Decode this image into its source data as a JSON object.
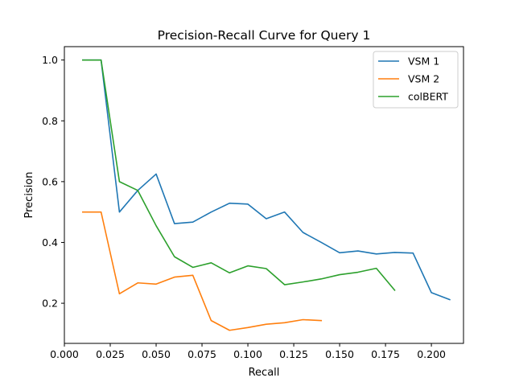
{
  "chart_data": {
    "type": "line",
    "title": "Precision-Recall Curve for Query 1",
    "xlabel": "Recall",
    "ylabel": "Precision",
    "xlim": [
      0.0,
      0.2175
    ],
    "ylim": [
      0.068,
      1.044
    ],
    "xticks": [
      {
        "value": 0.0,
        "label": "0.000"
      },
      {
        "value": 0.025,
        "label": "0.025"
      },
      {
        "value": 0.05,
        "label": "0.050"
      },
      {
        "value": 0.075,
        "label": "0.075"
      },
      {
        "value": 0.1,
        "label": "0.100"
      },
      {
        "value": 0.125,
        "label": "0.125"
      },
      {
        "value": 0.15,
        "label": "0.150"
      },
      {
        "value": 0.175,
        "label": "0.175"
      },
      {
        "value": 0.2,
        "label": "0.200"
      }
    ],
    "yticks": [
      {
        "value": 0.2,
        "label": "0.2"
      },
      {
        "value": 0.4,
        "label": "0.4"
      },
      {
        "value": 0.6,
        "label": "0.6"
      },
      {
        "value": 0.8,
        "label": "0.8"
      },
      {
        "value": 1.0,
        "label": "1.0"
      }
    ],
    "grid": false,
    "legend_position": "top-right",
    "series": [
      {
        "name": "VSM 1",
        "color": "#1f77b4",
        "x": [
          0.01,
          0.02,
          0.03,
          0.04,
          0.05,
          0.06,
          0.07,
          0.08,
          0.09,
          0.1,
          0.11,
          0.12,
          0.13,
          0.14,
          0.15,
          0.16,
          0.17,
          0.18,
          0.19,
          0.2,
          0.21
        ],
        "y": [
          1.0,
          1.0,
          0.5,
          0.571,
          0.625,
          0.462,
          0.467,
          0.5,
          0.529,
          0.526,
          0.478,
          0.5,
          0.433,
          0.4,
          0.366,
          0.372,
          0.362,
          0.367,
          0.365,
          0.235,
          0.212
        ]
      },
      {
        "name": "VSM 2",
        "color": "#ff7f0e",
        "x": [
          0.01,
          0.02,
          0.03,
          0.04,
          0.05,
          0.06,
          0.07,
          0.08,
          0.09,
          0.1,
          0.11,
          0.12,
          0.13,
          0.14
        ],
        "y": [
          0.5,
          0.5,
          0.231,
          0.267,
          0.263,
          0.286,
          0.292,
          0.143,
          0.111,
          0.12,
          0.131,
          0.136,
          0.146,
          0.143
        ]
      },
      {
        "name": "colBERT",
        "color": "#2ca02c",
        "x": [
          0.01,
          0.02,
          0.03,
          0.04,
          0.05,
          0.06,
          0.07,
          0.08,
          0.09,
          0.1,
          0.11,
          0.12,
          0.13,
          0.14,
          0.15,
          0.16,
          0.17,
          0.18
        ],
        "y": [
          1.0,
          1.0,
          0.6,
          0.571,
          0.455,
          0.353,
          0.318,
          0.333,
          0.3,
          0.323,
          0.314,
          0.261,
          0.27,
          0.28,
          0.294,
          0.302,
          0.315,
          0.243
        ]
      }
    ]
  }
}
